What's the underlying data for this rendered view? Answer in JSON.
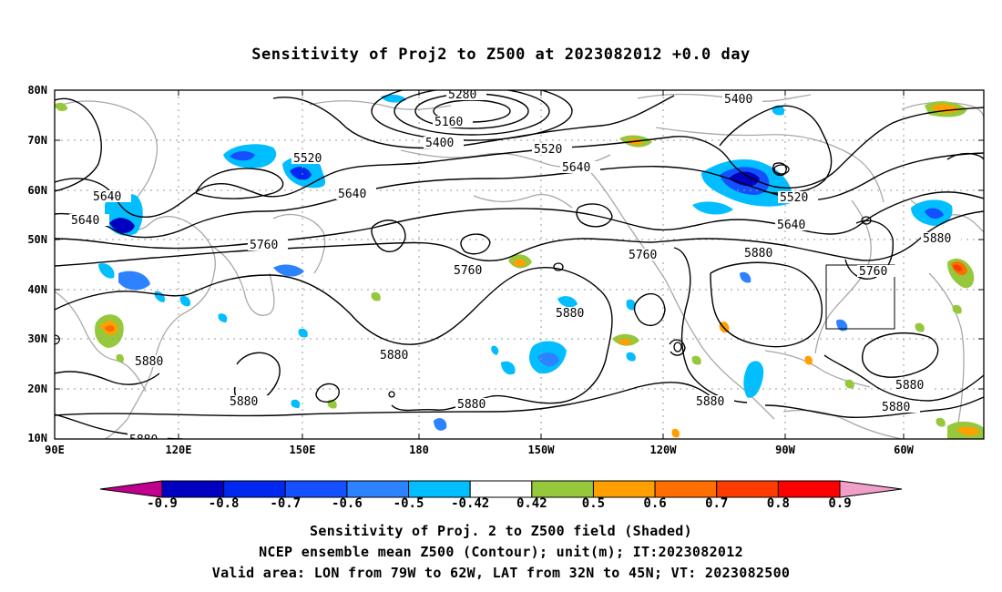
{
  "title": "Sensitivity of Proj2 to Z500 at 2023082012 +0.0 day",
  "lat_labels": [
    "80N",
    "70N",
    "60N",
    "50N",
    "40N",
    "30N",
    "20N",
    "10N"
  ],
  "lon_labels": [
    "90E",
    "120E",
    "150E",
    "180",
    "150W",
    "120W",
    "90W",
    "60W"
  ],
  "contour_labels": {
    "c5280": "5280",
    "c5160": "5160",
    "c5400a": "5400",
    "c5400b": "5400",
    "c5520a": "5520",
    "c5520b": "5520",
    "c5520c": "5520",
    "c5640a": "5640",
    "c5640b": "5640",
    "c5640c": "5640",
    "c5640d": "5640",
    "c5640e": "5640",
    "c5760a": "5760",
    "c5760b": "5760",
    "c5760c": "5760",
    "c5760d": "5760",
    "c5880a": "5880",
    "c5880b": "5880",
    "c5880c": "5880",
    "c5880d": "5880",
    "c5880e": "5880",
    "c5880f": "5880",
    "c5880g": "5880",
    "c5880h": "5880",
    "c5880i": "5880",
    "c5880j": "5880"
  },
  "colorbar": {
    "colors": [
      "#c0008c",
      "#0000c0",
      "#0028f0",
      "#1450ff",
      "#2c82ff",
      "#00beff",
      "#ffffff",
      "#96c83c",
      "#ffa000",
      "#ff6e00",
      "#ff3c00",
      "#ff0000",
      "#f0a0c8"
    ],
    "labels": [
      "-0.9",
      "-0.8",
      "-0.7",
      "-0.6",
      "-0.5",
      "-0.42",
      "0.42",
      "0.5",
      "0.6",
      "0.7",
      "0.8",
      "0.9"
    ]
  },
  "captions": {
    "line1": "Sensitivity of Proj. 2 to Z500 field (Shaded)",
    "line2": "NCEP ensemble mean Z500 (Contour); unit(m); IT:2023082012",
    "line3": "Valid area: LON from 79W to 62W, LAT from 32N to 45N; VT: 2023082500"
  }
}
